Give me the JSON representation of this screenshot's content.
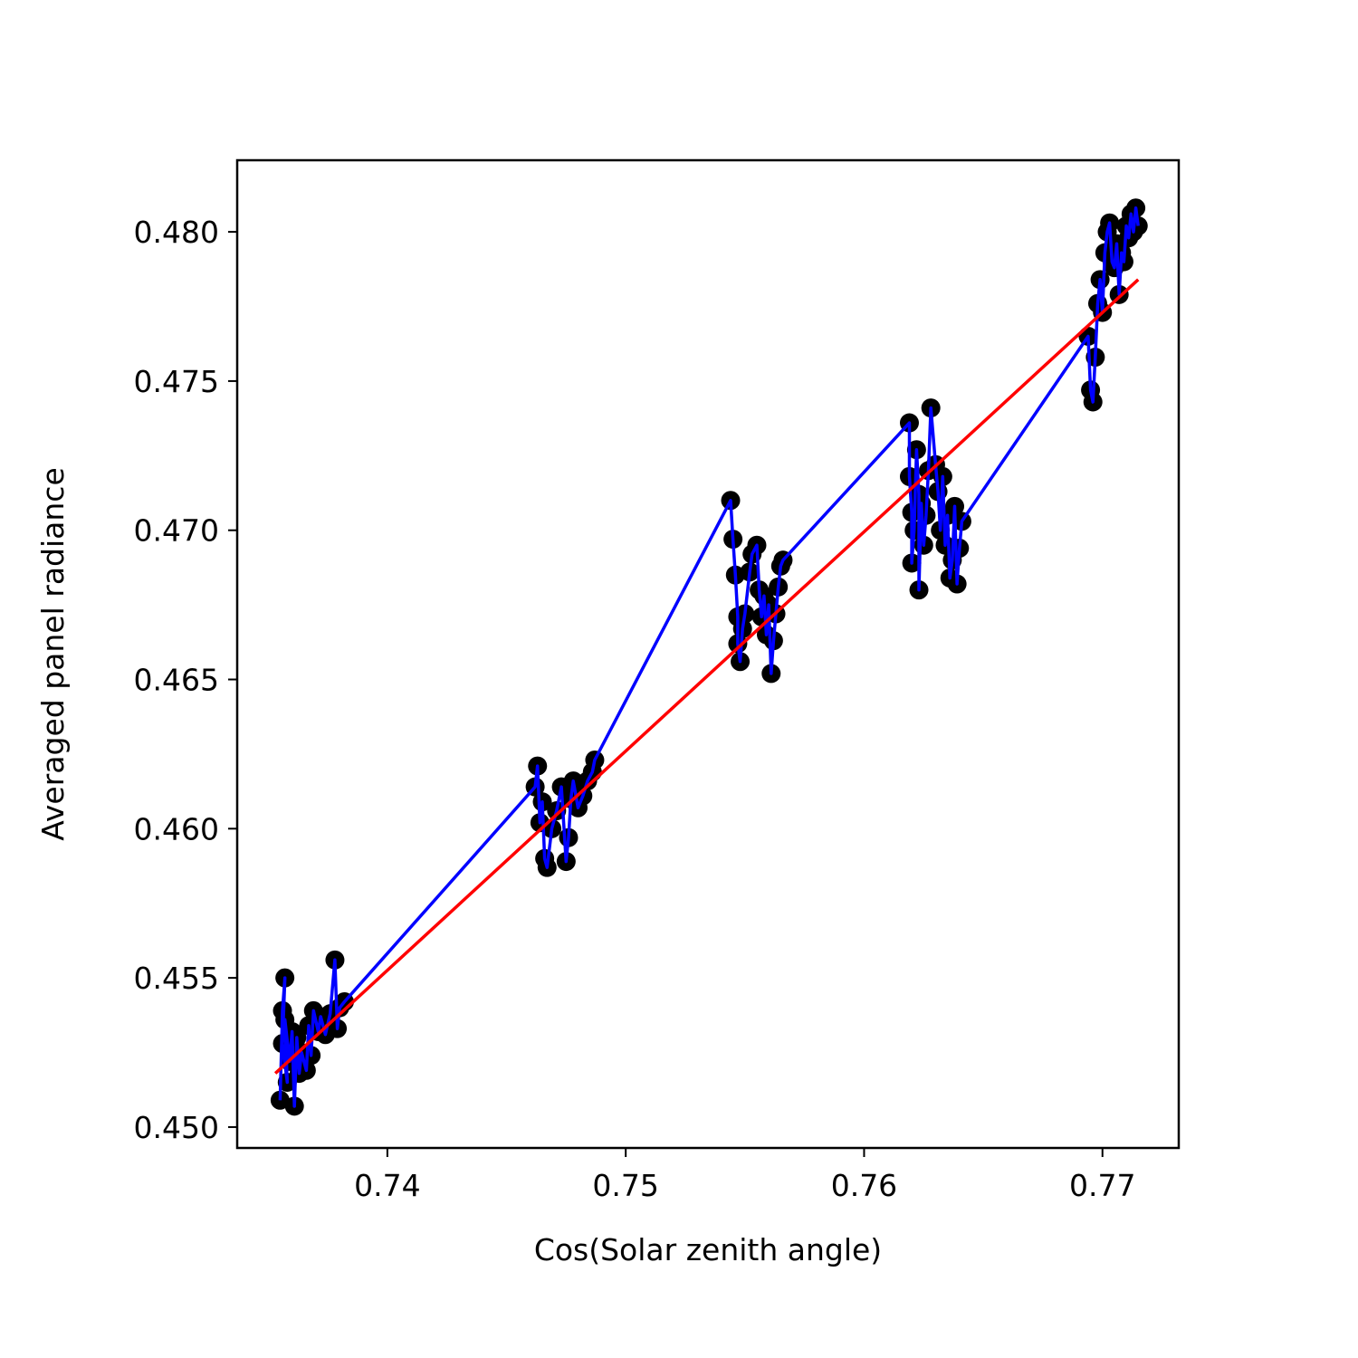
{
  "chart_data": {
    "type": "scatter",
    "title": "",
    "xlabel": "Cos(Solar zenith angle)",
    "ylabel": "Averaged panel radiance",
    "xlim": [
      0.7337,
      0.7732
    ],
    "ylim": [
      0.4493,
      0.4824
    ],
    "xticks": [
      {
        "value": 0.74,
        "label": "0.74"
      },
      {
        "value": 0.75,
        "label": "0.75"
      },
      {
        "value": 0.76,
        "label": "0.76"
      },
      {
        "value": 0.77,
        "label": "0.77"
      }
    ],
    "yticks": [
      {
        "value": 0.45,
        "label": "0.450"
      },
      {
        "value": 0.455,
        "label": "0.455"
      },
      {
        "value": 0.46,
        "label": "0.460"
      },
      {
        "value": 0.465,
        "label": "0.465"
      },
      {
        "value": 0.47,
        "label": "0.470"
      },
      {
        "value": 0.475,
        "label": "0.475"
      },
      {
        "value": 0.48,
        "label": "0.480"
      }
    ],
    "grid": false,
    "legend": "none",
    "series": [
      {
        "kind": "scatter+line",
        "marker_color": "#000000",
        "line_color": "#0000ff",
        "points": [
          [
            0.7355,
            0.4509
          ],
          [
            0.7356,
            0.4539
          ],
          [
            0.7357,
            0.455
          ],
          [
            0.7356,
            0.4528
          ],
          [
            0.7358,
            0.4515
          ],
          [
            0.7357,
            0.4536
          ],
          [
            0.7359,
            0.4522
          ],
          [
            0.736,
            0.4532
          ],
          [
            0.7361,
            0.4507
          ],
          [
            0.7362,
            0.453
          ],
          [
            0.7363,
            0.4518
          ],
          [
            0.7364,
            0.4525
          ],
          [
            0.7366,
            0.4519
          ],
          [
            0.7367,
            0.4534
          ],
          [
            0.7368,
            0.4524
          ],
          [
            0.7369,
            0.4539
          ],
          [
            0.7371,
            0.4532
          ],
          [
            0.7372,
            0.4537
          ],
          [
            0.7374,
            0.4531
          ],
          [
            0.7376,
            0.4538
          ],
          [
            0.7378,
            0.4556
          ],
          [
            0.7379,
            0.4533
          ],
          [
            0.738,
            0.454
          ],
          [
            0.7382,
            0.4542
          ],
          [
            0.7462,
            0.4614
          ],
          [
            0.7463,
            0.4621
          ],
          [
            0.7464,
            0.4602
          ],
          [
            0.7465,
            0.4609
          ],
          [
            0.7466,
            0.459
          ],
          [
            0.7467,
            0.4587
          ],
          [
            0.7469,
            0.46
          ],
          [
            0.7471,
            0.4606
          ],
          [
            0.7473,
            0.4614
          ],
          [
            0.7475,
            0.4589
          ],
          [
            0.7476,
            0.4597
          ],
          [
            0.7477,
            0.461
          ],
          [
            0.7478,
            0.4616
          ],
          [
            0.748,
            0.4607
          ],
          [
            0.7482,
            0.4611
          ],
          [
            0.7484,
            0.4616
          ],
          [
            0.7486,
            0.4619
          ],
          [
            0.7487,
            0.4623
          ],
          [
            0.7544,
            0.471
          ],
          [
            0.7545,
            0.4697
          ],
          [
            0.7546,
            0.4685
          ],
          [
            0.7547,
            0.4671
          ],
          [
            0.7547,
            0.4662
          ],
          [
            0.7548,
            0.4656
          ],
          [
            0.7549,
            0.4667
          ],
          [
            0.755,
            0.4672
          ],
          [
            0.7552,
            0.4686
          ],
          [
            0.7553,
            0.4692
          ],
          [
            0.7555,
            0.4695
          ],
          [
            0.7556,
            0.468
          ],
          [
            0.7557,
            0.4671
          ],
          [
            0.7558,
            0.4678
          ],
          [
            0.7559,
            0.4665
          ],
          [
            0.756,
            0.4675
          ],
          [
            0.7561,
            0.4652
          ],
          [
            0.7562,
            0.4663
          ],
          [
            0.7563,
            0.4672
          ],
          [
            0.7564,
            0.4681
          ],
          [
            0.7565,
            0.4688
          ],
          [
            0.7566,
            0.469
          ],
          [
            0.7619,
            0.4736
          ],
          [
            0.7619,
            0.4718
          ],
          [
            0.762,
            0.4706
          ],
          [
            0.762,
            0.4689
          ],
          [
            0.7621,
            0.47
          ],
          [
            0.7622,
            0.4727
          ],
          [
            0.7623,
            0.4712
          ],
          [
            0.7623,
            0.468
          ],
          [
            0.7624,
            0.4709
          ],
          [
            0.7625,
            0.4695
          ],
          [
            0.7626,
            0.4705
          ],
          [
            0.7627,
            0.472
          ],
          [
            0.7628,
            0.4741
          ],
          [
            0.763,
            0.4722
          ],
          [
            0.7631,
            0.4713
          ],
          [
            0.7632,
            0.47
          ],
          [
            0.7633,
            0.4718
          ],
          [
            0.7634,
            0.4695
          ],
          [
            0.7635,
            0.4705
          ],
          [
            0.7636,
            0.4684
          ],
          [
            0.7637,
            0.469
          ],
          [
            0.7638,
            0.4708
          ],
          [
            0.7639,
            0.4682
          ],
          [
            0.764,
            0.4694
          ],
          [
            0.7641,
            0.4703
          ],
          [
            0.7694,
            0.4765
          ],
          [
            0.7695,
            0.4747
          ],
          [
            0.7696,
            0.4743
          ],
          [
            0.7697,
            0.4758
          ],
          [
            0.7698,
            0.4776
          ],
          [
            0.7699,
            0.4784
          ],
          [
            0.77,
            0.4773
          ],
          [
            0.7701,
            0.4793
          ],
          [
            0.7702,
            0.48
          ],
          [
            0.7703,
            0.4803
          ],
          [
            0.7704,
            0.479
          ],
          [
            0.7705,
            0.4788
          ],
          [
            0.7706,
            0.4796
          ],
          [
            0.7707,
            0.4779
          ],
          [
            0.7708,
            0.4793
          ],
          [
            0.7709,
            0.479
          ],
          [
            0.771,
            0.4802
          ],
          [
            0.7711,
            0.4798
          ],
          [
            0.7712,
            0.4806
          ],
          [
            0.7713,
            0.48
          ],
          [
            0.7714,
            0.4808
          ],
          [
            0.7715,
            0.4802
          ]
        ]
      },
      {
        "kind": "fit-line",
        "line_color": "#ff0000",
        "points": [
          [
            0.7353,
            0.4518
          ],
          [
            0.7715,
            0.4784
          ]
        ]
      }
    ]
  }
}
